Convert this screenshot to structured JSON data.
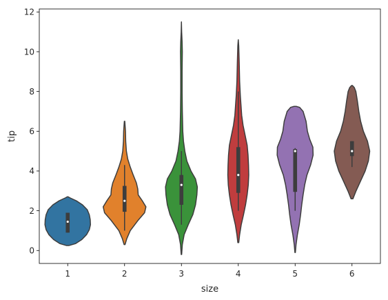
{
  "chart_data": {
    "type": "violin",
    "title": "",
    "xlabel": "size",
    "ylabel": "tip",
    "categories": [
      "1",
      "2",
      "3",
      "4",
      "5",
      "6"
    ],
    "ylim": [
      -0.65,
      12.15
    ],
    "yticks": [
      0,
      2,
      4,
      6,
      8,
      10,
      12
    ],
    "grid": false,
    "legend": "none",
    "series": [
      {
        "category": "1",
        "color": "#3274a1",
        "box": {
          "q1": 0.9,
          "median": 1.45,
          "q3": 1.9,
          "whisker_low": 0.9,
          "whisker_high": 1.9
        },
        "density": [
          [
            0.25,
            0.05
          ],
          [
            0.35,
            0.35
          ],
          [
            0.55,
            0.62
          ],
          [
            0.8,
            0.83
          ],
          [
            1.05,
            0.95
          ],
          [
            1.3,
            1.0
          ],
          [
            1.55,
            0.99
          ],
          [
            1.8,
            0.95
          ],
          [
            2.05,
            0.86
          ],
          [
            2.3,
            0.65
          ],
          [
            2.5,
            0.38
          ],
          [
            2.65,
            0.1
          ],
          [
            2.7,
            0.02
          ]
        ]
      },
      {
        "category": "2",
        "color": "#e1812c",
        "box": {
          "q1": 1.95,
          "median": 2.5,
          "q3": 3.25,
          "whisker_low": 1.0,
          "whisker_high": 4.3
        },
        "density": [
          [
            0.3,
            0.02
          ],
          [
            0.6,
            0.1
          ],
          [
            1.0,
            0.25
          ],
          [
            1.5,
            0.58
          ],
          [
            1.9,
            0.88
          ],
          [
            2.2,
            0.94
          ],
          [
            2.5,
            0.78
          ],
          [
            2.8,
            0.6
          ],
          [
            3.1,
            0.58
          ],
          [
            3.4,
            0.52
          ],
          [
            3.8,
            0.38
          ],
          [
            4.2,
            0.25
          ],
          [
            4.6,
            0.14
          ],
          [
            5.0,
            0.08
          ],
          [
            5.5,
            0.05
          ],
          [
            6.0,
            0.04
          ],
          [
            6.5,
            0.01
          ]
        ]
      },
      {
        "category": "3",
        "color": "#3a923a",
        "box": {
          "q1": 2.3,
          "median": 3.3,
          "q3": 3.8,
          "whisker_low": 1.3,
          "whisker_high": 5.0
        },
        "density": [
          [
            -0.2,
            0.01
          ],
          [
            0.3,
            0.04
          ],
          [
            0.8,
            0.12
          ],
          [
            1.3,
            0.3
          ],
          [
            1.8,
            0.5
          ],
          [
            2.3,
            0.62
          ],
          [
            2.8,
            0.68
          ],
          [
            3.2,
            0.7
          ],
          [
            3.6,
            0.62
          ],
          [
            4.0,
            0.42
          ],
          [
            4.5,
            0.24
          ],
          [
            5.0,
            0.15
          ],
          [
            5.5,
            0.09
          ],
          [
            6.0,
            0.06
          ],
          [
            7.0,
            0.04
          ],
          [
            8.0,
            0.03
          ],
          [
            9.0,
            0.03
          ],
          [
            10.0,
            0.04
          ],
          [
            10.5,
            0.03
          ],
          [
            11.0,
            0.01
          ],
          [
            11.5,
            0.0
          ]
        ]
      },
      {
        "category": "4",
        "color": "#c03d3e",
        "box": {
          "q1": 2.9,
          "median": 3.8,
          "q3": 5.2,
          "whisker_low": 2.0,
          "whisker_high": 8.0
        },
        "density": [
          [
            0.4,
            0.02
          ],
          [
            0.8,
            0.06
          ],
          [
            1.3,
            0.13
          ],
          [
            1.8,
            0.23
          ],
          [
            2.3,
            0.32
          ],
          [
            2.8,
            0.39
          ],
          [
            3.3,
            0.44
          ],
          [
            3.8,
            0.46
          ],
          [
            4.3,
            0.45
          ],
          [
            4.8,
            0.43
          ],
          [
            5.3,
            0.39
          ],
          [
            5.8,
            0.3
          ],
          [
            6.3,
            0.21
          ],
          [
            6.8,
            0.15
          ],
          [
            7.3,
            0.12
          ],
          [
            7.8,
            0.09
          ],
          [
            8.5,
            0.06
          ],
          [
            9.5,
            0.04
          ],
          [
            10.3,
            0.02
          ],
          [
            10.6,
            0.0
          ]
        ]
      },
      {
        "category": "5",
        "color": "#9372b2",
        "box": {
          "q1": 2.95,
          "median": 5.0,
          "q3": 5.1,
          "whisker_low": 2.0,
          "whisker_high": 5.15
        },
        "density": [
          [
            -0.1,
            0.01
          ],
          [
            0.3,
            0.04
          ],
          [
            0.8,
            0.1
          ],
          [
            1.3,
            0.18
          ],
          [
            1.8,
            0.24
          ],
          [
            2.3,
            0.29
          ],
          [
            2.8,
            0.35
          ],
          [
            3.3,
            0.42
          ],
          [
            3.8,
            0.52
          ],
          [
            4.3,
            0.68
          ],
          [
            4.8,
            0.79
          ],
          [
            5.2,
            0.78
          ],
          [
            5.6,
            0.64
          ],
          [
            6.0,
            0.54
          ],
          [
            6.5,
            0.48
          ],
          [
            7.0,
            0.35
          ],
          [
            7.2,
            0.2
          ],
          [
            7.25,
            0.05
          ]
        ]
      },
      {
        "category": "6",
        "color": "#845b53",
        "box": {
          "q1": 4.75,
          "median": 5.0,
          "q3": 5.5,
          "whisker_low": 4.2,
          "whisker_high": 5.5
        },
        "density": [
          [
            2.6,
            0.04
          ],
          [
            3.0,
            0.18
          ],
          [
            3.5,
            0.38
          ],
          [
            4.0,
            0.58
          ],
          [
            4.5,
            0.72
          ],
          [
            5.0,
            0.78
          ],
          [
            5.5,
            0.68
          ],
          [
            6.0,
            0.5
          ],
          [
            6.5,
            0.38
          ],
          [
            7.0,
            0.3
          ],
          [
            7.5,
            0.24
          ],
          [
            8.0,
            0.17
          ],
          [
            8.2,
            0.1
          ],
          [
            8.3,
            0.02
          ]
        ]
      }
    ]
  }
}
